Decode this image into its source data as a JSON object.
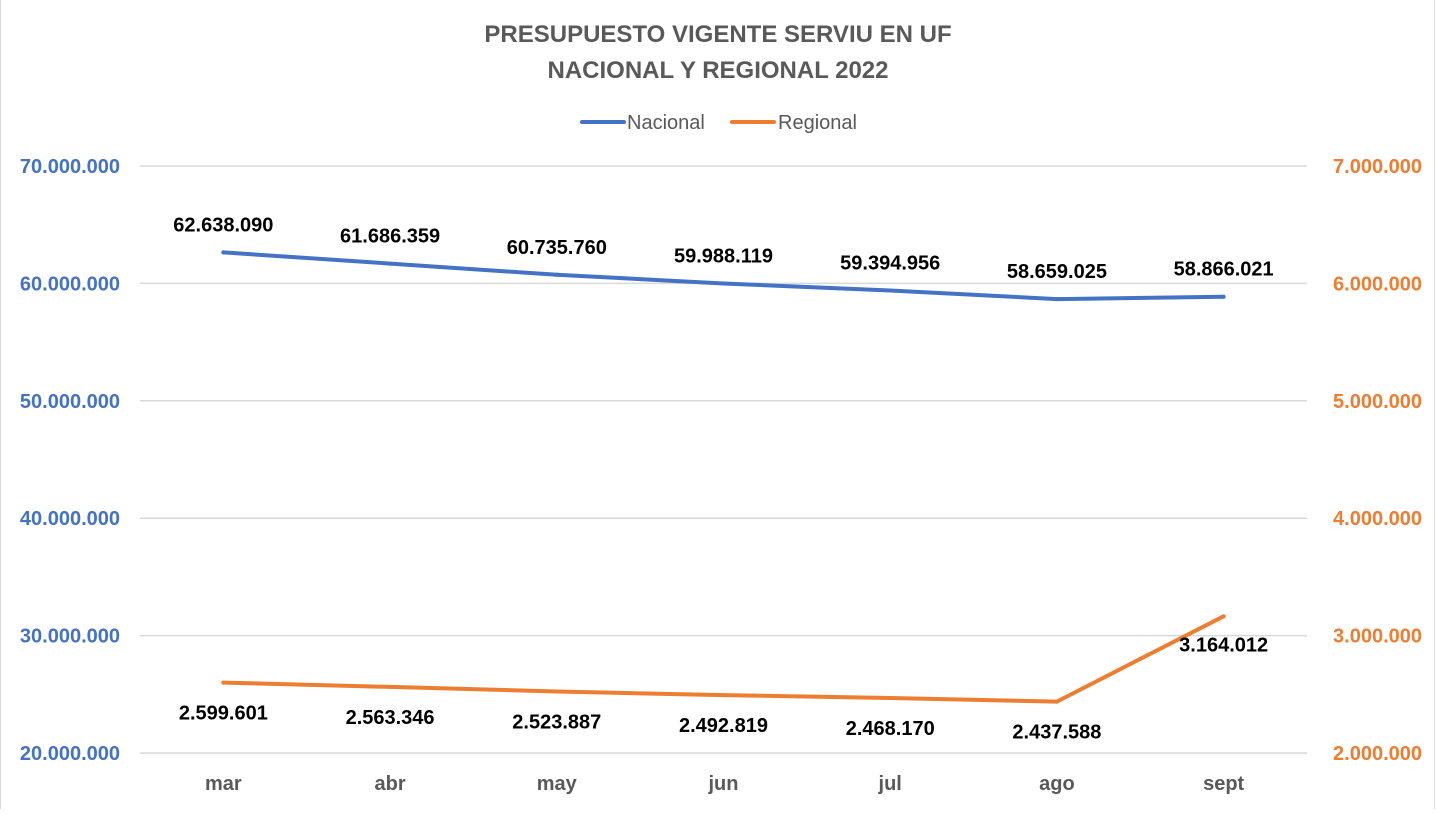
{
  "chart_data": {
    "type": "line",
    "title": [
      "PRESUPUESTO VIGENTE SERVIU EN UF",
      "NACIONAL Y REGIONAL 2022"
    ],
    "categories": [
      "mar",
      "abr",
      "may",
      "jun",
      "jul",
      "ago",
      "sept"
    ],
    "legend_position": "top-center",
    "grid": true,
    "series": [
      {
        "name": "Nacional",
        "axis": "left",
        "color": "#4472c4",
        "values": [
          62638090,
          61686359,
          60735760,
          59988119,
          59394956,
          58659025,
          58866021
        ],
        "labels": [
          "62.638.090",
          "61.686.359",
          "60.735.760",
          "59.988.119",
          "59.394.956",
          "58.659.025",
          "58.866.021"
        ]
      },
      {
        "name": "Regional",
        "axis": "right",
        "color": "#ed7d31",
        "values": [
          2599601,
          2563346,
          2523887,
          2492819,
          2468170,
          2437588,
          3164012
        ],
        "labels": [
          "2.599.601",
          "2.563.346",
          "2.523.887",
          "2.492.819",
          "2.468.170",
          "2.437.588",
          "3.164.012"
        ]
      }
    ],
    "y_left": {
      "min": 20000000,
      "max": 70000000,
      "ticks": [
        20000000,
        30000000,
        40000000,
        50000000,
        60000000,
        70000000
      ],
      "tick_labels": [
        "20.000.000",
        "30.000.000",
        "40.000.000",
        "50.000.000",
        "60.000.000",
        "70.000.000"
      ],
      "color": "#4472c4"
    },
    "y_right": {
      "min": 2000000,
      "max": 7000000,
      "ticks": [
        2000000,
        3000000,
        4000000,
        5000000,
        6000000,
        7000000
      ],
      "tick_labels": [
        "2.000.000",
        "3.000.000",
        "4.000.000",
        "5.000.000",
        "6.000.000",
        "7.000.000"
      ],
      "color": "#ed7d31"
    }
  }
}
